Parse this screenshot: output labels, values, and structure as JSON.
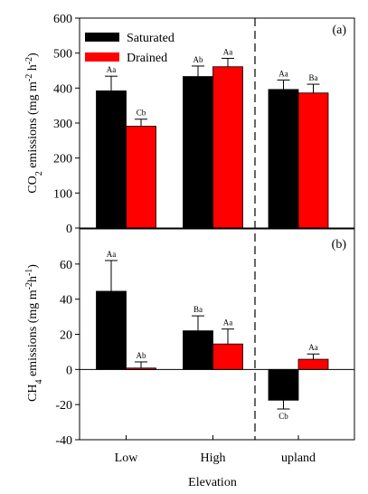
{
  "chart_data": [
    {
      "type": "bar",
      "panel_label": "(a)",
      "ylabel": "CO2 emissions (mg m-2 h-2)",
      "ylabel_parts": {
        "pre": "CO",
        "sub": "2",
        "mid": " emissions (mg m",
        "sup1": "-2",
        "mid2": " h",
        "sup2": "-2",
        "post": ")"
      },
      "ylim": [
        0,
        600
      ],
      "yticks": [
        0,
        100,
        200,
        300,
        400,
        500,
        600
      ],
      "categories": [
        "Low",
        "High",
        "upland"
      ],
      "series": [
        {
          "name": "Saturated",
          "color": "#000000",
          "values": [
            392,
            433,
            396
          ],
          "errors": [
            42,
            30,
            27
          ],
          "labels": [
            "Aa",
            "Ab",
            "Aa"
          ]
        },
        {
          "name": "Drained",
          "color": "#ff0000",
          "values": [
            291,
            461,
            386
          ],
          "errors": [
            20,
            24,
            25
          ],
          "labels": [
            "Cb",
            "Aa",
            "Ba"
          ]
        }
      ],
      "legend": {
        "position": "top-left"
      }
    },
    {
      "type": "bar",
      "panel_label": "(b)",
      "ylabel": "CH4 emissions (mg m-2h-1)",
      "ylabel_parts": {
        "pre": "CH",
        "sub": "4",
        "mid": " emissions (mg m",
        "sup1": "-2",
        "mid2": "h",
        "sup2": "-1",
        "post": ")"
      },
      "ylim": [
        -40,
        80
      ],
      "yticks": [
        -40,
        -20,
        0,
        20,
        40,
        60
      ],
      "categories": [
        "Low",
        "High",
        "upland"
      ],
      "series": [
        {
          "name": "Saturated",
          "color": "#000000",
          "values": [
            44.5,
            22,
            -17.5
          ],
          "errors": [
            17.5,
            8.5,
            5
          ],
          "labels": [
            "Aa",
            "Ba",
            "Cb"
          ]
        },
        {
          "name": "Drained",
          "color": "#ff0000",
          "values": [
            0.8,
            14.5,
            5.8
          ],
          "errors": [
            3.5,
            8.5,
            3
          ],
          "labels": [
            "Ab",
            "Aa",
            "Aa"
          ]
        }
      ]
    }
  ],
  "xlabel": "Elevation"
}
